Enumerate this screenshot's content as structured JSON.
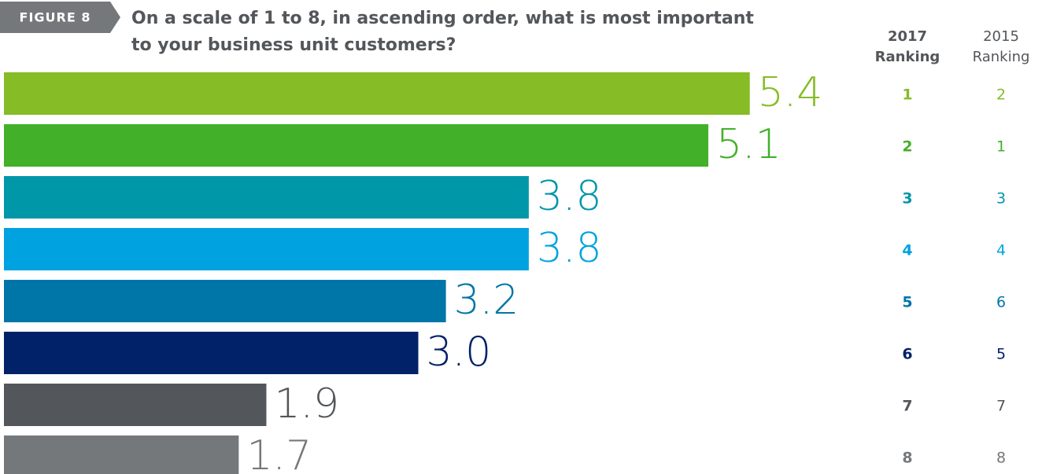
{
  "chart_data": {
    "type": "bar",
    "figure_label": "FIGURE 8",
    "title": [
      "On a scale of 1 to 8, in ascending order, what is most important",
      "to your business unit customers?"
    ],
    "categories": [
      null,
      null,
      null,
      null,
      null,
      null,
      null,
      null
    ],
    "values": [
      5.4,
      5.1,
      3.8,
      3.8,
      3.2,
      3.0,
      1.9,
      1.7
    ],
    "value_labels": [
      "5.4",
      "5.1",
      "3.8",
      "3.8",
      "3.2",
      "3.0",
      "1.9",
      "1.7"
    ],
    "colors": [
      "#86bc25",
      "#43b02a",
      "#0097a9",
      "#00a3e0",
      "#0076a8",
      "#012169",
      "#53565a",
      "#75787b"
    ],
    "rank_2017": {
      "header": [
        "2017",
        "Ranking"
      ],
      "values": [
        1,
        2,
        3,
        4,
        5,
        6,
        7,
        8
      ]
    },
    "rank_2015": {
      "header": [
        "2015",
        "Ranking"
      ],
      "values": [
        2,
        1,
        3,
        4,
        6,
        5,
        7,
        8
      ]
    }
  }
}
